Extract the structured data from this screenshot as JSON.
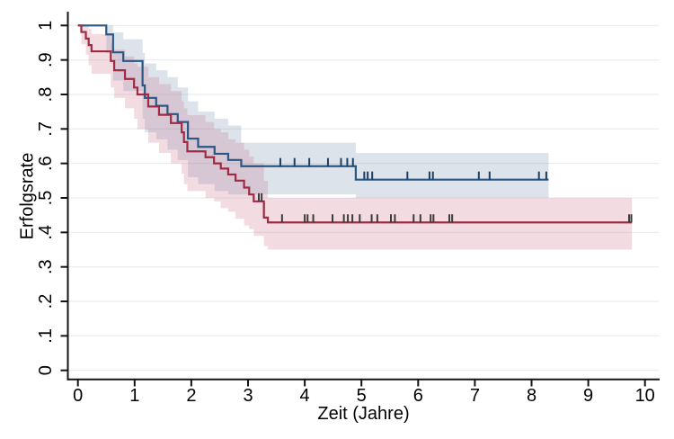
{
  "chart_data": {
    "type": "line",
    "variant": "kaplan-meier-step",
    "title": "",
    "xlabel": "Zeit (Jahre)",
    "ylabel": "Erfolgsrate",
    "xlim": [
      0,
      10.25
    ],
    "ylim": [
      0,
      1
    ],
    "grid": "horizontal",
    "legend": "none",
    "x_ticks": [
      {
        "v": 0,
        "label": "0"
      },
      {
        "v": 1,
        "label": "1"
      },
      {
        "v": 2,
        "label": "2"
      },
      {
        "v": 3,
        "label": "3"
      },
      {
        "v": 4,
        "label": "4"
      },
      {
        "v": 5,
        "label": "5"
      },
      {
        "v": 6,
        "label": "6"
      },
      {
        "v": 7,
        "label": "7"
      },
      {
        "v": 8,
        "label": "8"
      },
      {
        "v": 9,
        "label": "9"
      },
      {
        "v": 10,
        "label": "10"
      }
    ],
    "y_ticks": [
      {
        "v": 0,
        "label": "0"
      },
      {
        "v": 0.1,
        "label": ".1"
      },
      {
        "v": 0.2,
        "label": ".2"
      },
      {
        "v": 0.3,
        "label": ".3"
      },
      {
        "v": 0.4,
        "label": ".4"
      },
      {
        "v": 0.5,
        "label": ".5"
      },
      {
        "v": 0.6,
        "label": ".6"
      },
      {
        "v": 0.7,
        "label": ".7"
      },
      {
        "v": 0.8,
        "label": ".8"
      },
      {
        "v": 0.9,
        "label": ".9"
      },
      {
        "v": 1,
        "label": "1"
      }
    ],
    "style": {
      "background": "#ffffff",
      "grid_color": "#ebedee",
      "axis_color": "#141414",
      "text_color": "#000000"
    },
    "series": [
      {
        "name": "navy",
        "line_color": "#2a5783",
        "band_color": "rgba(110,140,170,0.24)",
        "censor_color": "#1c3f66",
        "end_t": 8.3,
        "steps": [
          [
            0,
            1
          ],
          [
            0.5,
            0.974
          ],
          [
            0.62,
            0.922
          ],
          [
            0.8,
            0.897
          ],
          [
            1.14,
            0.826
          ],
          [
            1.18,
            0.79
          ],
          [
            1.38,
            0.767
          ],
          [
            1.58,
            0.743
          ],
          [
            1.76,
            0.72
          ],
          [
            1.94,
            0.672
          ],
          [
            2.12,
            0.648
          ],
          [
            2.41,
            0.628
          ],
          [
            2.65,
            0.61
          ],
          [
            2.88,
            0.592
          ],
          [
            4.9,
            0.553
          ]
        ],
        "ci": [
          [
            0.5,
            0.92,
            1.0
          ],
          [
            0.62,
            0.84,
            0.98
          ],
          [
            0.8,
            0.81,
            0.96
          ],
          [
            1.14,
            0.73,
            0.92
          ],
          [
            1.18,
            0.69,
            0.89
          ],
          [
            1.38,
            0.67,
            0.87
          ],
          [
            1.58,
            0.64,
            0.85
          ],
          [
            1.76,
            0.61,
            0.82
          ],
          [
            1.94,
            0.56,
            0.78
          ],
          [
            2.12,
            0.54,
            0.75
          ],
          [
            2.41,
            0.52,
            0.73
          ],
          [
            2.65,
            0.51,
            0.71
          ],
          [
            2.88,
            0.51,
            0.66
          ],
          [
            4.9,
            0.5,
            0.63
          ]
        ],
        "censor_t": [
          3.57,
          3.82,
          4.08,
          4.41,
          4.64,
          4.75,
          4.85,
          5.05,
          5.11,
          5.19,
          5.81,
          6.2,
          6.26,
          7.07,
          7.26,
          8.13,
          8.26
        ]
      },
      {
        "name": "maroon",
        "line_color": "#9e2b43",
        "band_color": "rgba(200,110,135,0.24)",
        "censor_color": "#3c3c3c",
        "end_t": 9.77,
        "steps": [
          [
            0,
            1
          ],
          [
            0.06,
            0.981
          ],
          [
            0.14,
            0.962
          ],
          [
            0.19,
            0.943
          ],
          [
            0.24,
            0.925
          ],
          [
            0.58,
            0.897
          ],
          [
            0.64,
            0.87
          ],
          [
            0.83,
            0.845
          ],
          [
            0.99,
            0.82
          ],
          [
            1.05,
            0.8
          ],
          [
            1.24,
            0.765
          ],
          [
            1.43,
            0.741
          ],
          [
            1.64,
            0.717
          ],
          [
            1.83,
            0.69
          ],
          [
            1.87,
            0.662
          ],
          [
            1.93,
            0.635
          ],
          [
            2.25,
            0.618
          ],
          [
            2.4,
            0.6
          ],
          [
            2.52,
            0.585
          ],
          [
            2.65,
            0.568
          ],
          [
            2.78,
            0.55
          ],
          [
            2.93,
            0.53
          ],
          [
            3.02,
            0.51
          ],
          [
            3.1,
            0.49
          ],
          [
            3.28,
            0.443
          ],
          [
            3.35,
            0.429
          ]
        ],
        "ci": [
          [
            0.06,
            0.945,
            1.0
          ],
          [
            0.14,
            0.915,
            1.0
          ],
          [
            0.19,
            0.885,
            0.99
          ],
          [
            0.24,
            0.86,
            0.975
          ],
          [
            0.58,
            0.82,
            0.95
          ],
          [
            0.64,
            0.79,
            0.93
          ],
          [
            0.83,
            0.76,
            0.91
          ],
          [
            0.99,
            0.73,
            0.89
          ],
          [
            1.05,
            0.7,
            0.88
          ],
          [
            1.24,
            0.66,
            0.85
          ],
          [
            1.43,
            0.63,
            0.83
          ],
          [
            1.64,
            0.6,
            0.81
          ],
          [
            1.83,
            0.57,
            0.78
          ],
          [
            1.87,
            0.54,
            0.76
          ],
          [
            1.93,
            0.52,
            0.74
          ],
          [
            2.25,
            0.5,
            0.72
          ],
          [
            2.4,
            0.49,
            0.7
          ],
          [
            2.52,
            0.47,
            0.69
          ],
          [
            2.65,
            0.46,
            0.67
          ],
          [
            2.78,
            0.44,
            0.66
          ],
          [
            2.93,
            0.42,
            0.64
          ],
          [
            3.02,
            0.41,
            0.62
          ],
          [
            3.1,
            0.39,
            0.6
          ],
          [
            3.28,
            0.36,
            0.55
          ],
          [
            3.35,
            0.35,
            0.5
          ]
        ],
        "censor_t": [
          3.19,
          3.24,
          3.6,
          4.0,
          4.05,
          4.15,
          4.49,
          4.69,
          4.76,
          4.84,
          4.97,
          5.18,
          5.28,
          5.52,
          5.59,
          5.92,
          6.04,
          6.22,
          6.27,
          6.55,
          6.6,
          9.72,
          9.76
        ]
      }
    ]
  }
}
